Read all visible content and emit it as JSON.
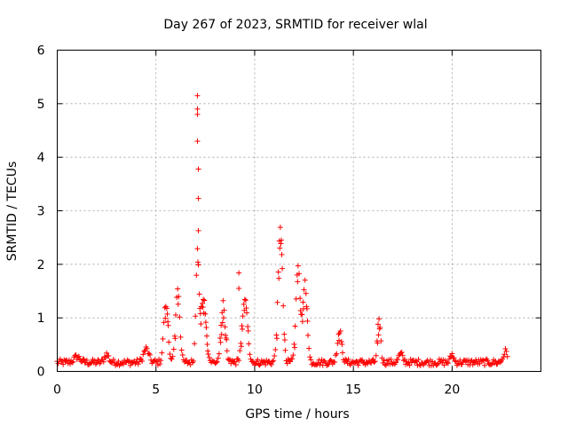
{
  "chart_data": {
    "type": "scatter",
    "title": "Day 267 of 2023, SRMTID for receiver wlal",
    "xlabel": "GPS time / hours",
    "ylabel": "SRMTID / TECUs",
    "xlim": [
      0,
      24.5
    ],
    "ylim": [
      0,
      6
    ],
    "xticks": [
      0,
      5,
      10,
      15,
      20
    ],
    "yticks": [
      0,
      1,
      2,
      3,
      4,
      5,
      6
    ],
    "grid": true,
    "marker": "+",
    "series": [
      {
        "name": "SRMTID",
        "color": "#ff0000",
        "baseline": {
          "x_start": 0.0,
          "x_end": 22.8,
          "step": 0.05,
          "level": 0.17
        },
        "peaks": [
          {
            "x": 1.0,
            "h": 0.1,
            "w": 0.3
          },
          {
            "x": 2.5,
            "h": 0.15,
            "w": 0.2
          },
          {
            "x": 4.5,
            "h": 0.25,
            "w": 0.25
          },
          {
            "x": 5.5,
            "h": 1.1,
            "w": 0.2
          },
          {
            "x": 6.1,
            "h": 1.35,
            "w": 0.2
          },
          {
            "x": 7.1,
            "h": 2.0,
            "w": 0.15
          },
          {
            "x": 7.4,
            "h": 1.2,
            "w": 0.25
          },
          {
            "x": 8.4,
            "h": 1.1,
            "w": 0.2
          },
          {
            "x": 9.5,
            "h": 1.2,
            "w": 0.25
          },
          {
            "x": 11.3,
            "h": 2.5,
            "w": 0.22
          },
          {
            "x": 12.2,
            "h": 1.8,
            "w": 0.2
          },
          {
            "x": 12.55,
            "h": 1.5,
            "w": 0.2
          },
          {
            "x": 14.3,
            "h": 0.6,
            "w": 0.2
          },
          {
            "x": 16.3,
            "h": 0.8,
            "w": 0.15
          },
          {
            "x": 17.4,
            "h": 0.15,
            "w": 0.2
          },
          {
            "x": 20.0,
            "h": 0.15,
            "w": 0.15
          },
          {
            "x": 22.7,
            "h": 0.2,
            "w": 0.2
          }
        ],
        "outliers": [
          [
            7.1,
            5.15
          ],
          [
            7.1,
            4.9
          ],
          [
            7.1,
            4.8
          ],
          [
            7.1,
            4.3
          ],
          [
            7.15,
            3.78
          ],
          [
            7.15,
            3.23
          ],
          [
            7.15,
            2.63
          ],
          [
            9.2,
            1.84
          ],
          [
            9.2,
            1.55
          ]
        ]
      }
    ]
  }
}
